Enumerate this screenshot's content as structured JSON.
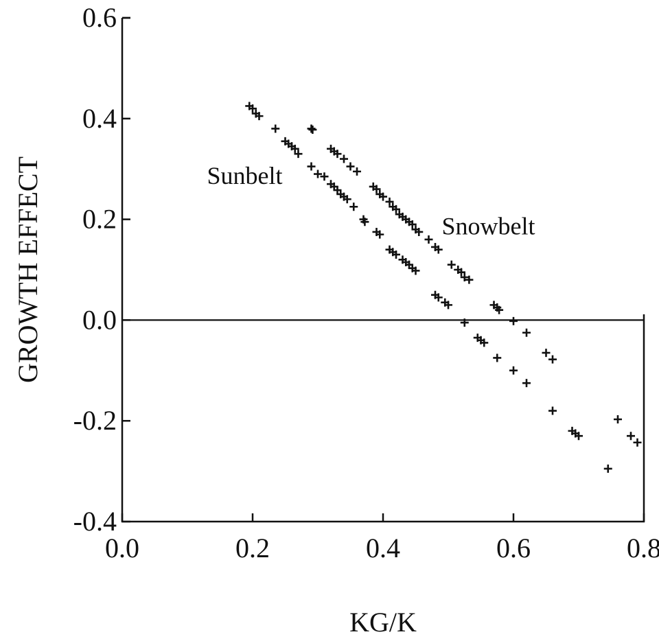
{
  "chart_data": {
    "type": "scatter",
    "title": "",
    "xlabel": "KG/K",
    "ylabel": "GROWTH EFFECT",
    "xlim": [
      0.0,
      0.8
    ],
    "ylim": [
      -0.4,
      0.6
    ],
    "xticks": [
      "0.0",
      "0.2",
      "0.4",
      "0.6",
      "0.8"
    ],
    "yticks": [
      "0.6",
      "0.4",
      "0.2",
      "0.0",
      "-0.2",
      "-0.4"
    ],
    "reference_line_y": 0.0,
    "grid": false,
    "legend": "none",
    "annotations": [
      {
        "text": "Sunbelt",
        "x": 0.13,
        "y": 0.27
      },
      {
        "text": "Snowbelt",
        "x": 0.49,
        "y": 0.17
      }
    ],
    "series": [
      {
        "name": "Sunbelt",
        "marker": "+",
        "points": [
          [
            0.195,
            0.425
          ],
          [
            0.2,
            0.42
          ],
          [
            0.205,
            0.41
          ],
          [
            0.21,
            0.405
          ],
          [
            0.235,
            0.38
          ],
          [
            0.25,
            0.355
          ],
          [
            0.255,
            0.35
          ],
          [
            0.26,
            0.345
          ],
          [
            0.265,
            0.34
          ],
          [
            0.27,
            0.33
          ],
          [
            0.29,
            0.305
          ],
          [
            0.3,
            0.29
          ],
          [
            0.31,
            0.285
          ],
          [
            0.32,
            0.27
          ],
          [
            0.325,
            0.265
          ],
          [
            0.33,
            0.258
          ],
          [
            0.335,
            0.25
          ],
          [
            0.34,
            0.245
          ],
          [
            0.345,
            0.24
          ],
          [
            0.355,
            0.225
          ],
          [
            0.37,
            0.2
          ],
          [
            0.372,
            0.195
          ],
          [
            0.39,
            0.175
          ],
          [
            0.395,
            0.17
          ],
          [
            0.41,
            0.14
          ],
          [
            0.415,
            0.135
          ],
          [
            0.42,
            0.13
          ],
          [
            0.43,
            0.12
          ],
          [
            0.435,
            0.115
          ],
          [
            0.44,
            0.11
          ],
          [
            0.445,
            0.103
          ],
          [
            0.45,
            0.098
          ],
          [
            0.48,
            0.05
          ],
          [
            0.485,
            0.045
          ],
          [
            0.495,
            0.035
          ],
          [
            0.5,
            0.03
          ],
          [
            0.525,
            -0.005
          ],
          [
            0.545,
            -0.035
          ],
          [
            0.55,
            -0.04
          ],
          [
            0.555,
            -0.045
          ],
          [
            0.575,
            -0.075
          ],
          [
            0.6,
            -0.1
          ],
          [
            0.62,
            -0.125
          ],
          [
            0.66,
            -0.18
          ],
          [
            0.69,
            -0.22
          ],
          [
            0.695,
            -0.225
          ],
          [
            0.7,
            -0.23
          ],
          [
            0.745,
            -0.295
          ]
        ]
      },
      {
        "name": "Snowbelt",
        "marker": "+",
        "points": [
          [
            0.29,
            0.38
          ],
          [
            0.292,
            0.378
          ],
          [
            0.32,
            0.34
          ],
          [
            0.325,
            0.335
          ],
          [
            0.33,
            0.33
          ],
          [
            0.34,
            0.32
          ],
          [
            0.35,
            0.305
          ],
          [
            0.36,
            0.295
          ],
          [
            0.385,
            0.265
          ],
          [
            0.39,
            0.26
          ],
          [
            0.395,
            0.25
          ],
          [
            0.4,
            0.245
          ],
          [
            0.41,
            0.235
          ],
          [
            0.415,
            0.225
          ],
          [
            0.42,
            0.22
          ],
          [
            0.425,
            0.21
          ],
          [
            0.43,
            0.205
          ],
          [
            0.435,
            0.2
          ],
          [
            0.44,
            0.195
          ],
          [
            0.445,
            0.19
          ],
          [
            0.45,
            0.18
          ],
          [
            0.455,
            0.175
          ],
          [
            0.47,
            0.16
          ],
          [
            0.48,
            0.145
          ],
          [
            0.485,
            0.14
          ],
          [
            0.505,
            0.11
          ],
          [
            0.515,
            0.1
          ],
          [
            0.52,
            0.095
          ],
          [
            0.525,
            0.085
          ],
          [
            0.532,
            0.08
          ],
          [
            0.57,
            0.03
          ],
          [
            0.575,
            0.025
          ],
          [
            0.578,
            0.02
          ],
          [
            0.6,
            -0.002
          ],
          [
            0.62,
            -0.025
          ],
          [
            0.65,
            -0.065
          ],
          [
            0.66,
            -0.078
          ],
          [
            0.76,
            -0.197
          ],
          [
            0.78,
            -0.23
          ],
          [
            0.79,
            -0.243
          ]
        ]
      }
    ]
  }
}
